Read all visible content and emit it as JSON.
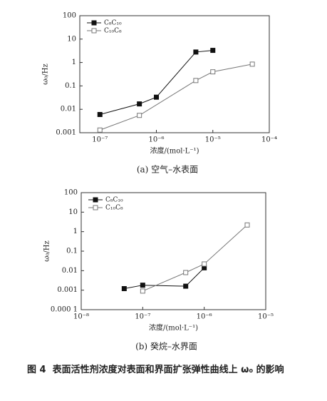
{
  "chart_data": [
    {
      "type": "line",
      "title": "(a) 空气–水表面",
      "xlabel": "浓度/(mol·L⁻¹)",
      "ylabel": "ω₀/Hz",
      "xscale": "log",
      "yscale": "log",
      "xlim": [
        4.4e-08,
        0.0001
      ],
      "ylim": [
        0.001,
        100
      ],
      "xticks": [
        {
          "value": 1e-07,
          "label": "10⁻⁷"
        },
        {
          "value": 1e-06,
          "label": "10⁻⁶"
        },
        {
          "value": 1e-05,
          "label": "10⁻⁵"
        },
        {
          "value": 0.0001,
          "label": "10⁻⁴"
        }
      ],
      "yticks": [
        0.001,
        0.01,
        0.1,
        1,
        10,
        100
      ],
      "legend": "upper left",
      "series": [
        {
          "name": "C₈C₁₀",
          "color": "#111111",
          "marker_fill": true,
          "x": [
            1e-07,
            5e-07,
            1e-06,
            5e-06,
            1e-05
          ],
          "values": [
            0.006,
            0.017,
            0.033,
            2.8,
            3.3
          ]
        },
        {
          "name": "C₁₀C₈",
          "color": "#777777",
          "marker_fill": false,
          "x": [
            1e-07,
            5e-07,
            5e-06,
            1e-05,
            5e-05
          ],
          "values": [
            0.0013,
            0.0055,
            0.17,
            0.4,
            0.85
          ]
        }
      ]
    },
    {
      "type": "line",
      "title": "(b) 癸烷–水界面",
      "xlabel": "浓度/(mol·L⁻¹)",
      "ylabel": "ω₀/Hz",
      "xscale": "log",
      "yscale": "log",
      "xlim": [
        1e-08,
        1e-05
      ],
      "ylim": [
        0.0001,
        100
      ],
      "xticks": [
        {
          "value": 1e-08,
          "label": "10⁻⁸"
        },
        {
          "value": 1e-07,
          "label": "10⁻⁷"
        },
        {
          "value": 1e-06,
          "label": "10⁻⁶"
        },
        {
          "value": 1e-05,
          "label": "10⁻⁵"
        }
      ],
      "yticks": [
        {
          "value": 0.0001,
          "label": "0.000 1"
        },
        0.001,
        0.01,
        0.1,
        1,
        10,
        100
      ],
      "legend": "upper left",
      "series": [
        {
          "name": "C₈C₁₀",
          "color": "#111111",
          "marker_fill": true,
          "x": [
            5e-08,
            1e-07,
            5e-07,
            1e-06
          ],
          "values": [
            0.0012,
            0.0018,
            0.0016,
            0.014
          ]
        },
        {
          "name": "C₁₀C₈",
          "color": "#777777",
          "marker_fill": false,
          "x": [
            1e-07,
            5e-07,
            1e-06,
            5e-06
          ],
          "values": [
            0.0009,
            0.008,
            0.022,
            2.2
          ]
        }
      ]
    }
  ],
  "figure_caption": {
    "label": "图 4",
    "text": "表面活性剂浓度对表面和界面扩张弹性曲线上 ω₀ 的影响"
  }
}
